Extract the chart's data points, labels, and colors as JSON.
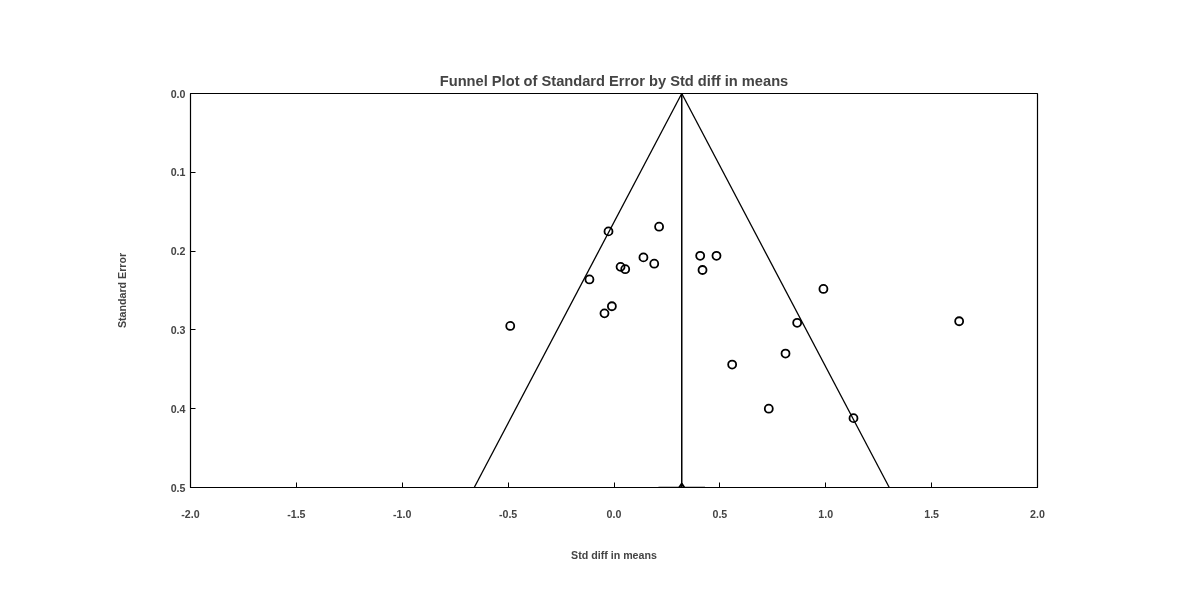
{
  "chart_data": {
    "type": "scatter",
    "title": "Funnel Plot of Standard Error by Std diff in means",
    "xlabel": "Std diff in means",
    "ylabel": "Standard Error",
    "xlim": [
      -2.0,
      2.0
    ],
    "ylim": [
      0.5,
      0.0
    ],
    "xticks": [
      {
        "value": -2,
        "label": "-2.0"
      },
      {
        "value": -1.5,
        "label": "-1.5"
      },
      {
        "value": -1,
        "label": "-1.0"
      },
      {
        "value": -0.5,
        "label": "-0.5"
      },
      {
        "value": 0,
        "label": "0.0"
      },
      {
        "value": 0.5,
        "label": "0.5"
      },
      {
        "value": 1,
        "label": "1.0"
      },
      {
        "value": 1.5,
        "label": "1.5"
      },
      {
        "value": 2,
        "label": "2.0"
      }
    ],
    "yticks": [
      {
        "value": 0,
        "label": "0.0"
      },
      0.1,
      0.2,
      0.3,
      0.4,
      0.5
    ],
    "grid": false,
    "series": [
      {
        "marker": "circle",
        "color": "#000000",
        "x": [
          -0.49,
          -0.026,
          0.213,
          0.139,
          0.19,
          0.031,
          0.053,
          -0.116,
          -0.01,
          -0.045,
          0.407,
          0.484,
          0.418,
          0.558,
          0.989,
          0.865,
          1.63,
          0.81,
          0.731,
          1.131
        ],
        "values": [
          0.295,
          0.175,
          0.169,
          0.208,
          0.216,
          0.22,
          0.223,
          0.236,
          0.27,
          0.279,
          0.206,
          0.206,
          0.224,
          0.344,
          0.248,
          0.291,
          0.289,
          0.33,
          0.4,
          0.412
        ]
      },
      {
        "type": "line",
        "color": "#000000",
        "x": [
          0.32,
          -0.66
        ],
        "values": [
          0.0,
          0.5
        ]
      },
      {
        "type": "line",
        "color": "#000000",
        "x": [
          0.32,
          1.3
        ],
        "values": [
          0.0,
          0.5
        ]
      },
      {
        "marker": "diamond",
        "color": "#000000",
        "x": [
          0.32
        ],
        "values": [
          0.5
        ],
        "xerrors": [
          [
            0.21,
            0.43
          ]
        ]
      }
    ],
    "ref_lines": [
      {
        "axis": "x",
        "value": 0.32,
        "color": "#000000"
      }
    ]
  }
}
